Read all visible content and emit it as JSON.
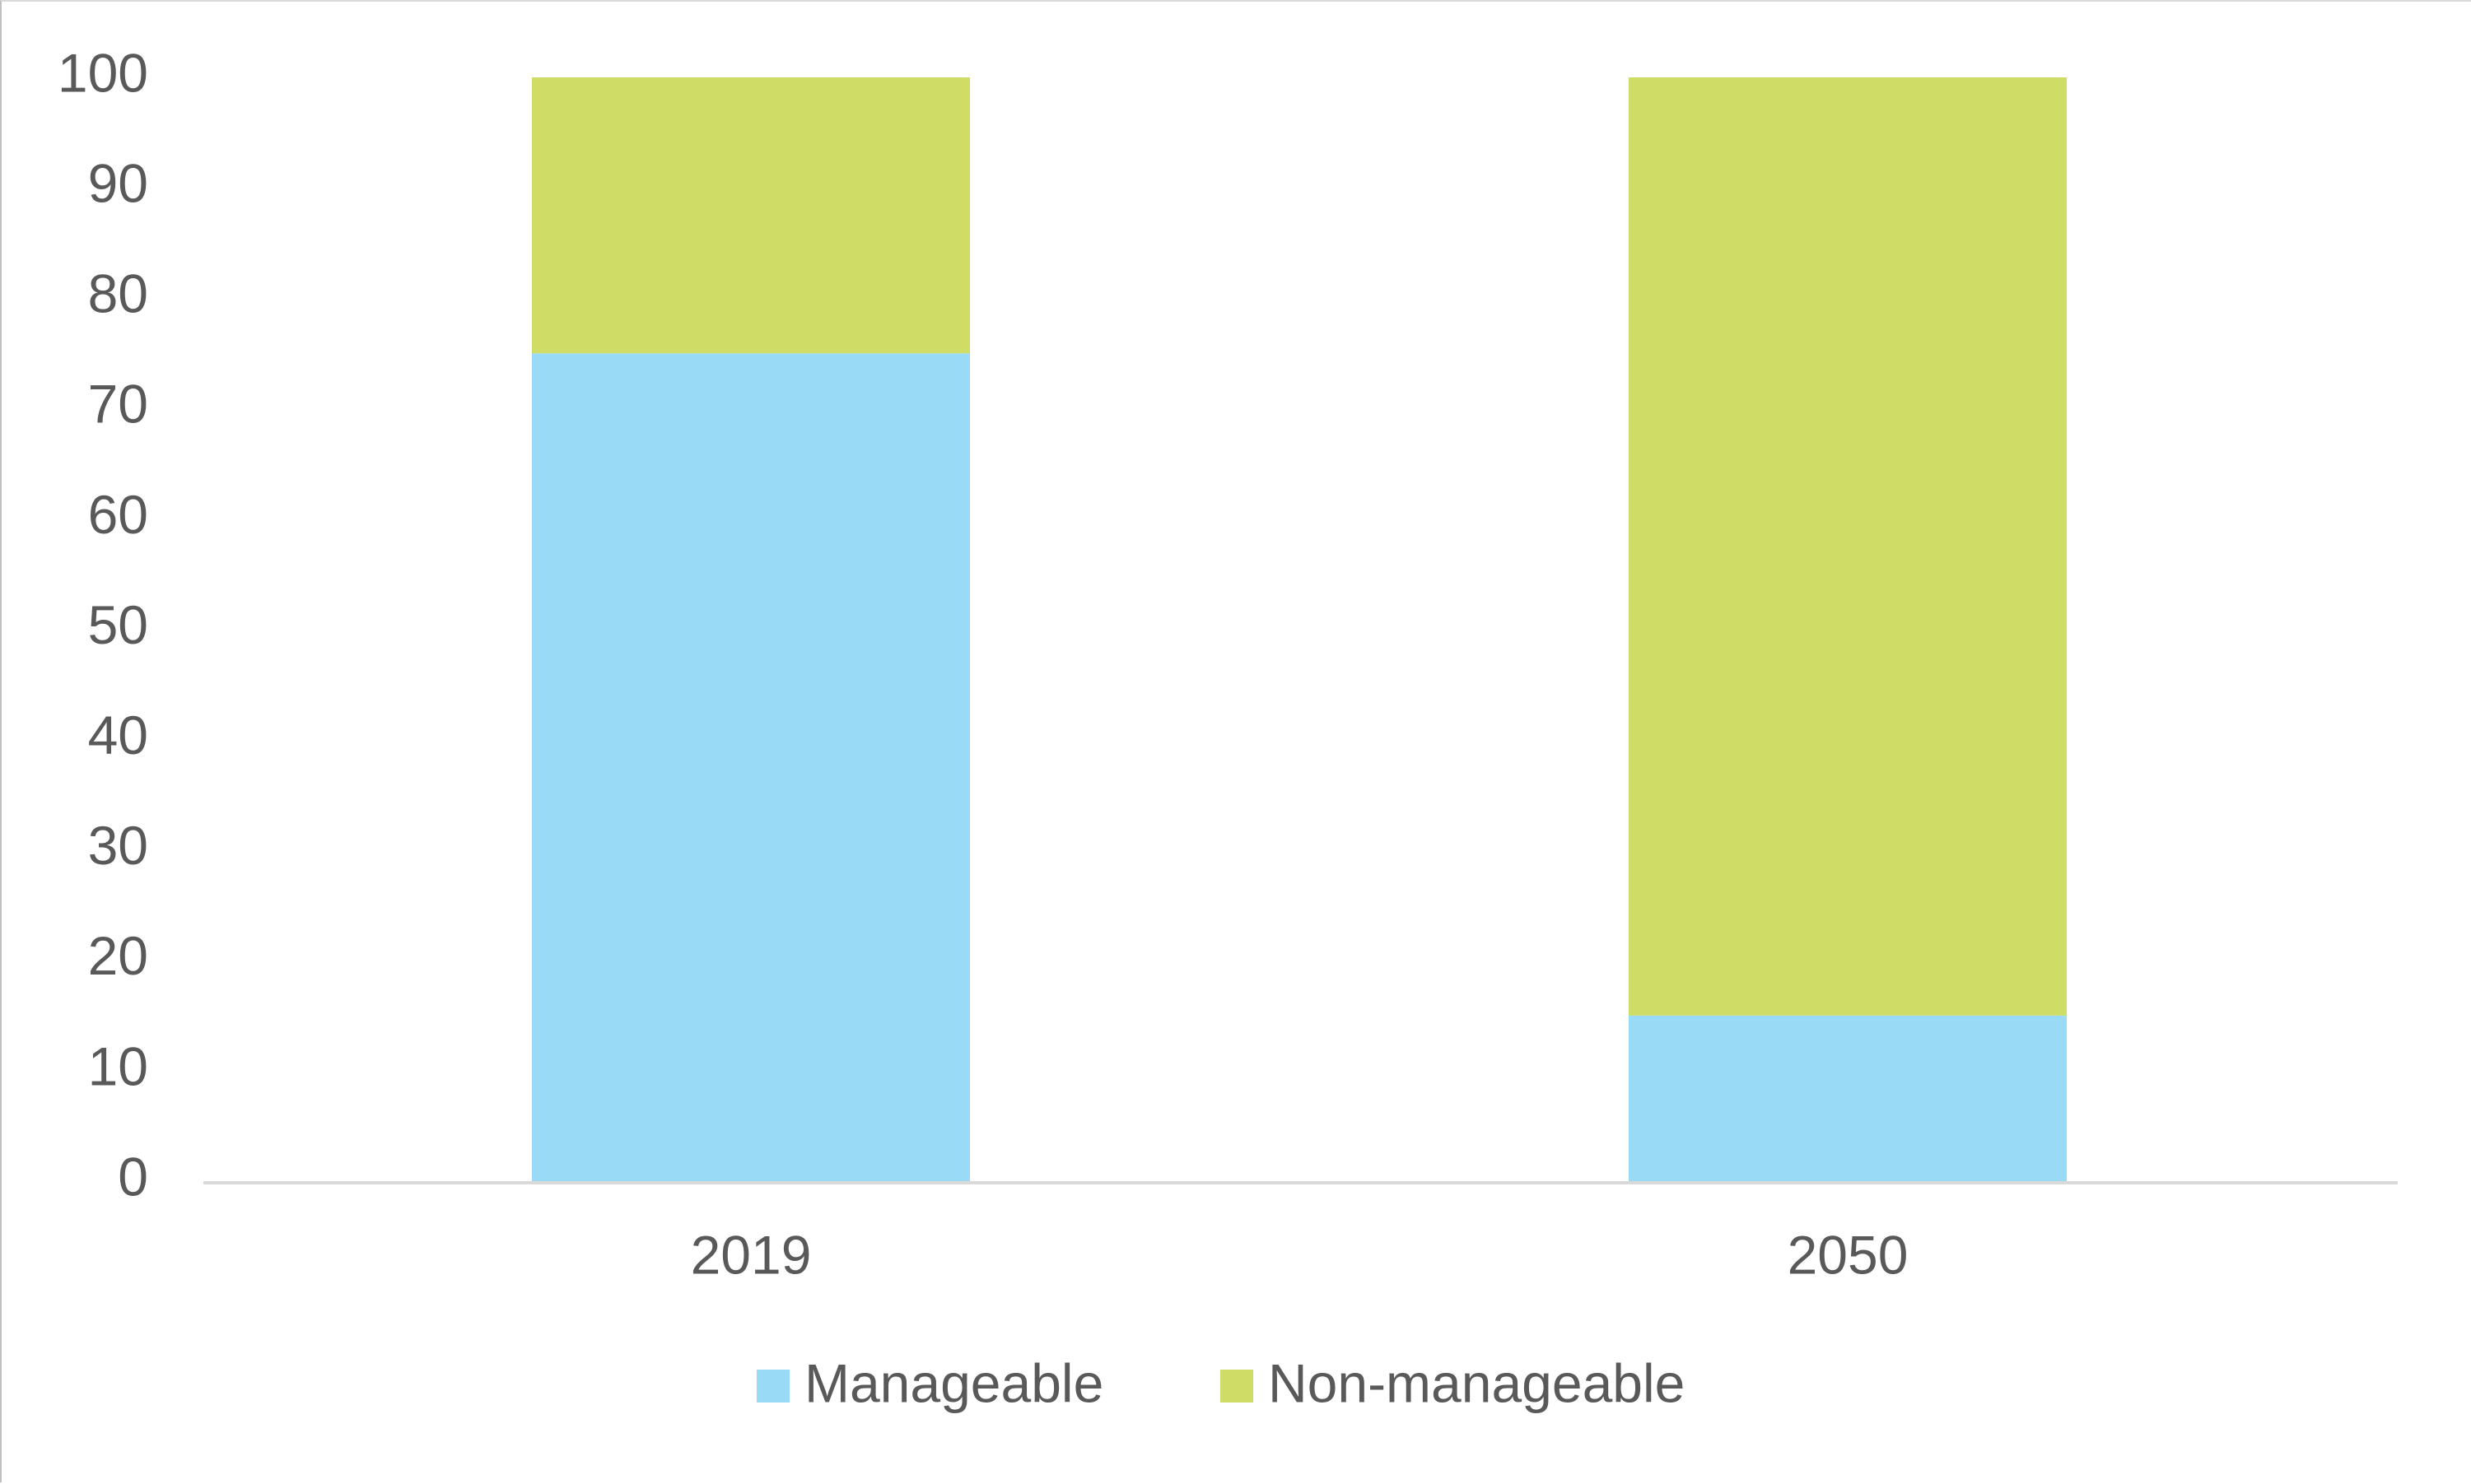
{
  "chart_data": {
    "type": "bar",
    "stacked": true,
    "categories": [
      "2019",
      "2050"
    ],
    "series": [
      {
        "name": "Manageable",
        "values": [
          75,
          15
        ],
        "color": "#99dbf7"
      },
      {
        "name": "Non-manageable",
        "values": [
          25,
          85
        ],
        "color": "#cfdd66"
      }
    ],
    "title": "",
    "xlabel": "",
    "ylabel": "",
    "ylim": [
      0,
      100
    ],
    "yticks": [
      "0",
      "10",
      "20",
      "30",
      "40",
      "50",
      "60",
      "70",
      "80",
      "90",
      "100"
    ],
    "grid": false,
    "legend_position": "bottom",
    "axis_color": "#d9d9d9",
    "text_color": "#595959"
  }
}
